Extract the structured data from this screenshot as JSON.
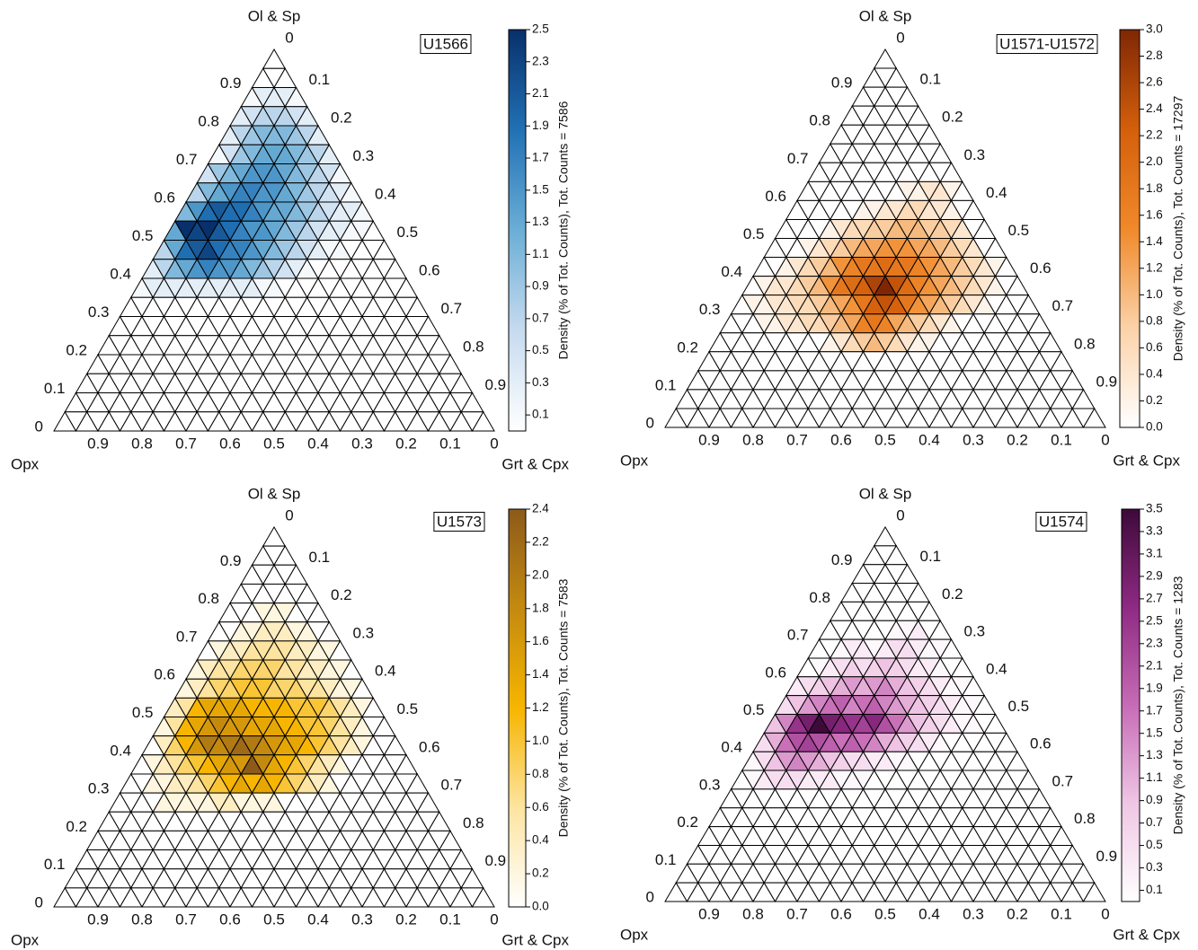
{
  "chart_data": [
    {
      "type": "ternary",
      "title": "U1566",
      "top_label": "Ol & Sp",
      "left_label": "Opx",
      "right_label": "Grt & Cpx",
      "colorbar_label": "Density (% of Tot. Counts), Tot. Counts = 7586",
      "colormap": [
        "#ffffff",
        "#c6dbef",
        "#6baed6",
        "#2171b5",
        "#08306b"
      ],
      "clim": [
        0,
        2.5
      ],
      "cticks": [
        0.1,
        0.3,
        0.5,
        0.7,
        0.9,
        1.1,
        1.3,
        1.5,
        1.7,
        1.9,
        2.1,
        2.3,
        2.5
      ],
      "left_ticks": [
        0,
        0.1,
        0.2,
        0.3,
        0.4,
        0.5,
        0.6,
        0.7,
        0.8,
        0.9
      ],
      "right_ticks": [
        0,
        0.1,
        0.2,
        0.3,
        0.4,
        0.5,
        0.6,
        0.7,
        0.8,
        0.9
      ],
      "bottom_ticks": [
        0,
        0.1,
        0.2,
        0.3,
        0.4,
        0.5,
        0.6,
        0.7,
        0.8,
        0.9
      ],
      "density": [
        [
          0
        ],
        [
          0,
          0,
          0
        ],
        [
          0.1,
          0.3,
          0.3,
          0.3,
          0.1
        ],
        [
          0.3,
          0.5,
          0.7,
          0.7,
          0.7,
          0.5,
          0.3
        ],
        [
          0.3,
          0.7,
          0.9,
          1.1,
          1.1,
          1.1,
          0.9,
          0.7,
          0.3
        ],
        [
          0.1,
          0.5,
          0.9,
          1.1,
          1.3,
          1.3,
          1.3,
          1.1,
          0.9,
          0.7,
          0.3
        ],
        [
          0.5,
          0.9,
          1.1,
          1.3,
          1.5,
          1.5,
          1.5,
          1.3,
          1.1,
          0.9,
          0.7,
          0.5,
          0.1
        ],
        [
          0.7,
          1.1,
          1.3,
          1.5,
          1.7,
          1.7,
          1.5,
          1.5,
          1.3,
          1.1,
          0.9,
          0.7,
          0.5,
          0.3,
          0.1
        ],
        [
          1.1,
          1.5,
          1.9,
          2.1,
          1.9,
          1.9,
          1.7,
          1.5,
          1.3,
          1.3,
          1.1,
          0.9,
          0.7,
          0.5,
          0.3,
          0.3,
          0.1
        ],
        [
          1.3,
          2.5,
          2.3,
          2.5,
          2.1,
          1.9,
          1.7,
          1.5,
          1.5,
          1.3,
          1.1,
          0.9,
          0.7,
          0.5,
          0.3,
          0.3,
          0.1,
          0.1,
          0
        ],
        [
          0.7,
          1.3,
          1.9,
          2.1,
          2.3,
          1.9,
          1.7,
          1.7,
          1.5,
          1.3,
          1.1,
          0.9,
          0.7,
          0.5,
          0.3,
          0.1,
          0.1,
          0,
          0,
          0,
          0
        ],
        [
          0.3,
          0.7,
          1.1,
          1.3,
          1.5,
          1.7,
          1.5,
          1.5,
          1.3,
          1.1,
          0.9,
          0.7,
          0.5,
          0.3,
          0.1,
          0,
          0,
          0,
          0,
          0,
          0,
          0,
          0
        ],
        [
          0.1,
          0.3,
          0.3,
          0.3,
          0.3,
          0.3,
          0.3,
          0.3,
          0.3,
          0.3,
          0.3,
          0.1,
          0.1,
          0,
          0,
          0,
          0,
          0,
          0,
          0,
          0,
          0,
          0,
          0,
          0
        ]
      ]
    },
    {
      "type": "ternary",
      "title": "U1571-U1572",
      "top_label": "Ol & Sp",
      "left_label": "Opx",
      "right_label": "Grt & Cpx",
      "colorbar_label": "Density (% of Tot. Counts), Tot. Counts = 17297",
      "colormap": [
        "#ffffff",
        "#fbd2a8",
        "#f0892a",
        "#d45f0b",
        "#7f2704"
      ],
      "clim": [
        0,
        3.0
      ],
      "cticks": [
        {
          "value": 0,
          "label": "0.0"
        },
        0.2,
        0.4,
        0.6,
        0.8,
        {
          "value": 1,
          "label": "1.0"
        },
        1.2,
        1.4,
        1.6,
        1.8,
        {
          "value": 2,
          "label": "2.0"
        },
        2.2,
        2.4,
        2.6,
        2.8,
        {
          "value": 3,
          "label": "3.0"
        }
      ],
      "left_ticks": [
        0,
        0.1,
        0.2,
        0.3,
        0.4,
        0.5,
        0.6,
        0.7,
        0.8,
        0.9
      ],
      "right_ticks": [
        0,
        0.1,
        0.2,
        0.3,
        0.4,
        0.5,
        0.6,
        0.7,
        0.8,
        0.9
      ],
      "bottom_ticks": [
        0,
        0.1,
        0.2,
        0.3,
        0.4,
        0.5,
        0.6,
        0.7,
        0.8,
        0.9
      ],
      "density": [
        [
          0
        ],
        [
          0,
          0,
          0
        ],
        [
          0,
          0,
          0,
          0,
          0
        ],
        [
          0,
          0,
          0,
          0,
          0,
          0,
          0
        ],
        [
          0,
          0,
          0,
          0,
          0,
          0,
          0,
          0,
          0
        ],
        [
          0,
          0,
          0,
          0,
          0,
          0,
          0,
          0,
          0,
          0,
          0
        ],
        [
          0,
          0,
          0,
          0,
          0,
          0,
          0,
          0,
          0,
          0,
          0,
          0,
          0
        ],
        [
          0,
          0,
          0,
          0,
          0,
          0,
          0,
          0,
          0,
          0.2,
          0.2,
          0.4,
          0.4,
          0.2,
          0
        ],
        [
          0,
          0,
          0,
          0,
          0,
          0,
          0.2,
          0.2,
          0.4,
          0.4,
          0.6,
          0.6,
          0.4,
          0.4,
          0.2,
          0,
          0
        ],
        [
          0,
          0,
          0,
          0,
          0.2,
          0.4,
          0.6,
          0.6,
          0.8,
          0.8,
          1.0,
          1.0,
          1.0,
          0.8,
          0.8,
          0.6,
          0.4,
          0,
          0
        ],
        [
          0,
          0,
          0,
          0.2,
          0.4,
          0.6,
          0.8,
          1.0,
          1.2,
          1.2,
          1.4,
          1.4,
          1.4,
          1.2,
          1.2,
          1.0,
          0.8,
          0.6,
          0.4,
          0,
          0
        ],
        [
          0,
          0,
          0.2,
          0.4,
          0.6,
          0.8,
          1.0,
          1.4,
          1.6,
          1.8,
          1.8,
          2.0,
          1.8,
          1.8,
          1.6,
          1.4,
          1.2,
          1.0,
          0.8,
          0.6,
          0.4,
          0.2,
          0
        ],
        [
          0,
          0.2,
          0.4,
          0.4,
          0.6,
          0.8,
          1.0,
          1.4,
          1.8,
          2.0,
          2.2,
          2.6,
          3.0,
          2.4,
          2.0,
          1.6,
          1.4,
          1.2,
          1.0,
          0.8,
          0.6,
          0.4,
          0.2,
          0,
          0
        ],
        [
          0,
          0.2,
          0.2,
          0.4,
          0.4,
          0.6,
          0.6,
          0.8,
          1.0,
          1.2,
          1.4,
          1.8,
          2.2,
          2.4,
          2.2,
          1.8,
          1.4,
          1.2,
          1.0,
          0.8,
          0.6,
          0.4,
          0.2,
          0,
          0,
          0,
          0
        ],
        [
          0,
          0,
          0,
          0.2,
          0.2,
          0.4,
          0.4,
          0.6,
          0.6,
          0.8,
          1.0,
          1.2,
          1.6,
          1.8,
          1.6,
          1.2,
          1.0,
          0.8,
          0.6,
          0.4,
          0.2,
          0,
          0,
          0,
          0,
          0,
          0,
          0,
          0
        ],
        [
          0,
          0,
          0,
          0,
          0,
          0,
          0,
          0,
          0,
          0,
          0.2,
          0.4,
          0.6,
          0.8,
          1.0,
          0.8,
          0.6,
          0.4,
          0.2,
          0.2,
          0,
          0,
          0,
          0,
          0,
          0,
          0,
          0,
          0,
          0,
          0
        ]
      ]
    },
    {
      "type": "ternary",
      "title": "U1573",
      "top_label": "Ol & Sp",
      "left_label": "Opx",
      "right_label": "Grt & Cpx",
      "colorbar_label": "Density (% of Tot. Counts), Tot. Counts = 7583",
      "colormap": [
        "#ffffff",
        "#fde4a0",
        "#f7b500",
        "#c48a10",
        "#8c5a1a"
      ],
      "clim": [
        0,
        2.4
      ],
      "cticks": [
        {
          "value": 0,
          "label": "0.0"
        },
        0.2,
        0.4,
        0.6,
        0.8,
        {
          "value": 1,
          "label": "1.0"
        },
        1.2,
        1.4,
        1.6,
        1.8,
        {
          "value": 2,
          "label": "2.0"
        },
        2.2,
        2.4
      ],
      "left_ticks": [
        0,
        0.1,
        0.2,
        0.3,
        0.4,
        0.5,
        0.6,
        0.7,
        0.8,
        0.9
      ],
      "right_ticks": [
        0,
        0.1,
        0.2,
        0.3,
        0.4,
        0.5,
        0.6,
        0.7,
        0.8,
        0.9
      ],
      "bottom_ticks": [
        0,
        0.1,
        0.2,
        0.3,
        0.4,
        0.5,
        0.6,
        0.7,
        0.8,
        0.9
      ],
      "density": [
        [
          0
        ],
        [
          0,
          0,
          0
        ],
        [
          0,
          0,
          0,
          0,
          0
        ],
        [
          0,
          0,
          0,
          0,
          0,
          0,
          0
        ],
        [
          0,
          0,
          0,
          0.2,
          0.2,
          0.2,
          0,
          0,
          0
        ],
        [
          0,
          0,
          0.2,
          0.2,
          0.4,
          0.4,
          0.4,
          0.2,
          0.2,
          0,
          0
        ],
        [
          0,
          0.2,
          0.4,
          0.4,
          0.6,
          0.6,
          0.6,
          0.6,
          0.4,
          0.4,
          0.2,
          0.2,
          0
        ],
        [
          0.2,
          0.4,
          0.6,
          0.6,
          0.8,
          0.8,
          0.8,
          0.8,
          0.6,
          0.6,
          0.4,
          0.4,
          0.2,
          0.2,
          0
        ],
        [
          0.2,
          0.4,
          0.6,
          0.8,
          0.8,
          1.0,
          1.0,
          1.0,
          0.8,
          0.8,
          0.8,
          0.6,
          0.6,
          0.4,
          0.2,
          0.2,
          0
        ],
        [
          0.4,
          0.6,
          1.2,
          1.4,
          1.4,
          1.4,
          1.4,
          1.2,
          1.2,
          1.2,
          1.2,
          1.0,
          1.0,
          1.0,
          0.8,
          0.6,
          0.4,
          0.2,
          0
        ],
        [
          0.2,
          0.6,
          1.2,
          1.4,
          1.6,
          1.8,
          1.6,
          1.6,
          1.4,
          1.4,
          1.4,
          1.2,
          1.2,
          1.0,
          1.0,
          0.8,
          0.6,
          0.4,
          0.2,
          0,
          0
        ],
        [
          0,
          0.4,
          0.8,
          1.2,
          1.6,
          2.0,
          1.8,
          2.0,
          2.2,
          2.0,
          1.8,
          1.6,
          1.4,
          1.4,
          1.2,
          1.0,
          0.8,
          0.6,
          0.4,
          0.2,
          0,
          0,
          0
        ],
        [
          0,
          0.2,
          0.4,
          0.6,
          0.8,
          1.0,
          1.2,
          1.4,
          1.6,
          1.6,
          2.4,
          1.8,
          1.4,
          1.2,
          1.0,
          0.8,
          0.6,
          0.4,
          0.2,
          0,
          0,
          0,
          0,
          0,
          0
        ],
        [
          0,
          0,
          0.2,
          0.2,
          0.4,
          0.4,
          0.6,
          0.8,
          1.0,
          1.2,
          1.4,
          1.2,
          1.4,
          1.2,
          1.0,
          0.8,
          0.6,
          0.4,
          0.2,
          0,
          0,
          0,
          0,
          0,
          0,
          0,
          0
        ],
        [
          0,
          0,
          0,
          0,
          0.2,
          0.2,
          0.2,
          0.2,
          0.2,
          0.4,
          0.4,
          0.2,
          0.2,
          0.2,
          0.2,
          0,
          0,
          0,
          0,
          0,
          0,
          0,
          0,
          0,
          0,
          0,
          0,
          0,
          0
        ]
      ]
    },
    {
      "type": "ternary",
      "title": "U1574",
      "top_label": "Ol & Sp",
      "left_label": "Opx",
      "right_label": "Grt & Cpx",
      "colorbar_label": "Density (% of Tot. Counts), Tot. Counts = 1283",
      "colormap": [
        "#ffffff",
        "#efc6e4",
        "#c76bb6",
        "#8e2a83",
        "#3d0a3a"
      ],
      "clim": [
        0,
        3.5
      ],
      "cticks": [
        0.1,
        0.3,
        0.5,
        0.7,
        0.9,
        1.1,
        1.3,
        1.5,
        1.7,
        1.9,
        2.1,
        2.3,
        2.5,
        2.7,
        2.9,
        3.1,
        3.3,
        3.5
      ],
      "left_ticks": [
        0,
        0.1,
        0.2,
        0.3,
        0.4,
        0.5,
        0.6,
        0.7,
        0.8,
        0.9
      ],
      "right_ticks": [
        0,
        0.1,
        0.2,
        0.3,
        0.4,
        0.5,
        0.6,
        0.7,
        0.8,
        0.9
      ],
      "bottom_ticks": [
        0,
        0.1,
        0.2,
        0.3,
        0.4,
        0.5,
        0.6,
        0.7,
        0.8,
        0.9
      ],
      "density": [
        [
          0
        ],
        [
          0,
          0,
          0
        ],
        [
          0,
          0,
          0,
          0,
          0
        ],
        [
          0,
          0,
          0,
          0,
          0,
          0,
          0
        ],
        [
          0,
          0,
          0,
          0,
          0,
          0,
          0,
          0,
          0
        ],
        [
          0,
          0,
          0,
          0,
          0,
          0,
          0.1,
          0.1,
          0.3,
          0,
          0
        ],
        [
          0,
          0,
          0.1,
          0.3,
          0.3,
          0.1,
          0.3,
          0.5,
          0.5,
          0.3,
          0.1,
          0.1,
          0
        ],
        [
          0,
          0.1,
          0.3,
          0.5,
          0.7,
          0.5,
          0.7,
          0.9,
          0.7,
          0.5,
          0.3,
          0.3,
          0.1,
          0,
          0
        ],
        [
          0.3,
          0.5,
          0.7,
          0.9,
          1.1,
          1.3,
          1.1,
          1.3,
          1.5,
          1.1,
          0.9,
          0.7,
          0.5,
          0.3,
          0.1,
          0.1,
          0
        ],
        [
          0.5,
          0.9,
          1.3,
          1.5,
          1.7,
          1.9,
          1.5,
          1.7,
          1.9,
          1.5,
          1.3,
          1.1,
          0.9,
          0.7,
          0.5,
          0.3,
          0.1,
          0.1,
          0
        ],
        [
          0.9,
          1.5,
          2.5,
          2.9,
          3.5,
          2.9,
          2.7,
          2.5,
          2.3,
          2.7,
          2.1,
          1.7,
          1.3,
          0.9,
          0.7,
          0.5,
          0.3,
          0.1,
          0.1,
          0,
          0
        ],
        [
          0.5,
          1.1,
          1.7,
          2.1,
          2.3,
          2.1,
          1.9,
          1.7,
          1.9,
          1.7,
          1.5,
          1.1,
          0.9,
          0.7,
          0.5,
          0.3,
          0.1,
          0,
          0,
          0,
          0,
          0,
          0
        ],
        [
          0.1,
          0.5,
          0.9,
          1.3,
          1.5,
          1.3,
          1.1,
          0.9,
          0.7,
          0.5,
          0.5,
          0.3,
          0.3,
          0.1,
          0.1,
          0,
          0,
          0,
          0,
          0,
          0,
          0,
          0,
          0,
          0
        ],
        [
          0,
          0.1,
          0.3,
          0.5,
          0.5,
          0.5,
          0.3,
          0.3,
          0.3,
          0.1,
          0.1,
          0.1,
          0,
          0,
          0,
          0,
          0,
          0,
          0,
          0,
          0,
          0,
          0,
          0,
          0,
          0,
          0
        ]
      ]
    }
  ]
}
